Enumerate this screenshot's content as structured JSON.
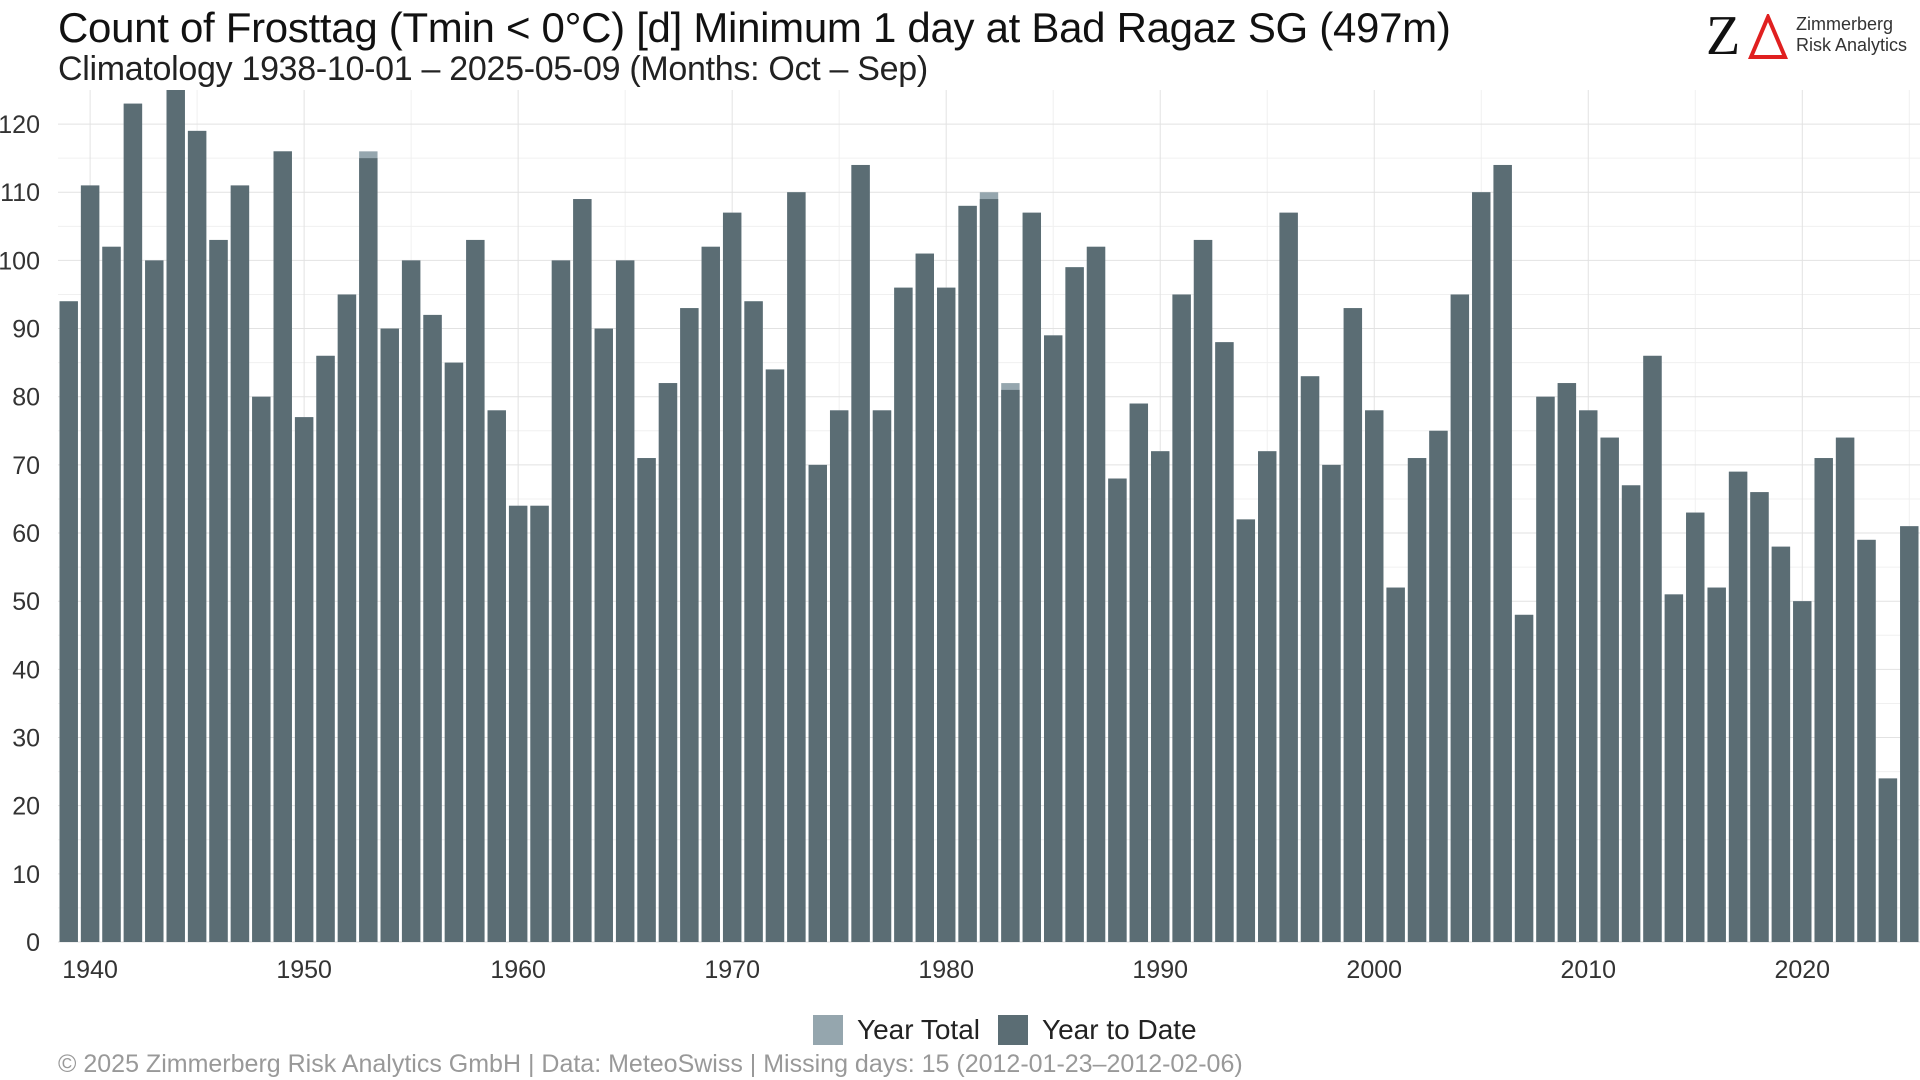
{
  "title": "Count of Frosttag (Tmin < 0°C) [d] Minimum 1 day at Bad Ragaz  SG (497m)",
  "subtitle": "Climatology 1938-10-01 – 2025-05-09 (Months: Oct – Sep)",
  "logo": {
    "mark": "Z",
    "line1": "Zimmerberg",
    "line2": "Risk Analytics"
  },
  "footer": "©  2025 Zimmerberg Risk Analytics GmbH | Data: MeteoSwiss | Missing days: 15 (2012-01-23–2012-02-06)",
  "colors": {
    "year_total": "#95a6ae",
    "year_to_date": "#5b6d74",
    "logo_triangle": "#e02020"
  },
  "chart_data": {
    "type": "bar",
    "xlim": [
      1938.5,
      2025.5
    ],
    "ylim": [
      0,
      125
    ],
    "grid": true,
    "legend_position": "bottom",
    "x_ticks": [
      1940,
      1950,
      1960,
      1970,
      1980,
      1990,
      2000,
      2010,
      2020
    ],
    "y_ticks": [
      0,
      10,
      20,
      30,
      40,
      50,
      60,
      70,
      80,
      90,
      100,
      110,
      120
    ],
    "x": [
      1939,
      1940,
      1941,
      1942,
      1943,
      1944,
      1945,
      1946,
      1947,
      1948,
      1949,
      1950,
      1951,
      1952,
      1953,
      1954,
      1955,
      1956,
      1957,
      1958,
      1959,
      1960,
      1961,
      1962,
      1963,
      1964,
      1965,
      1966,
      1967,
      1968,
      1969,
      1970,
      1971,
      1972,
      1973,
      1974,
      1975,
      1976,
      1977,
      1978,
      1979,
      1980,
      1981,
      1982,
      1983,
      1984,
      1985,
      1986,
      1987,
      1988,
      1989,
      1990,
      1991,
      1992,
      1993,
      1994,
      1995,
      1996,
      1997,
      1998,
      1999,
      2000,
      2001,
      2002,
      2003,
      2004,
      2005,
      2006,
      2007,
      2008,
      2009,
      2010,
      2011,
      2012,
      2013,
      2014,
      2015,
      2016,
      2017,
      2018,
      2019,
      2020,
      2021,
      2022,
      2023,
      2024,
      2025
    ],
    "series": [
      {
        "name": "Year Total",
        "values": [
          94,
          111,
          102,
          123,
          100,
          125,
          119,
          103,
          111,
          80,
          116,
          77,
          86,
          95,
          116,
          90,
          100,
          92,
          85,
          103,
          78,
          64,
          64,
          100,
          109,
          90,
          100,
          71,
          82,
          93,
          102,
          107,
          94,
          84,
          110,
          70,
          78,
          114,
          78,
          96,
          101,
          96,
          108,
          110,
          82,
          107,
          89,
          99,
          102,
          68,
          79,
          72,
          95,
          103,
          88,
          62,
          72,
          107,
          83,
          70,
          93,
          78,
          52,
          71,
          75,
          95,
          110,
          114,
          48,
          80,
          82,
          78,
          74,
          67,
          86,
          51,
          63,
          52,
          69,
          66,
          58,
          50,
          71,
          74,
          59,
          24,
          61
        ]
      },
      {
        "name": "Year to Date",
        "values": [
          94,
          111,
          102,
          123,
          100,
          125,
          119,
          103,
          111,
          80,
          116,
          77,
          86,
          95,
          115,
          90,
          100,
          92,
          85,
          103,
          78,
          64,
          64,
          100,
          109,
          90,
          100,
          71,
          82,
          93,
          102,
          107,
          94,
          84,
          110,
          70,
          78,
          114,
          78,
          96,
          101,
          96,
          108,
          109,
          81,
          107,
          89,
          99,
          102,
          68,
          79,
          72,
          95,
          103,
          88,
          62,
          72,
          107,
          83,
          70,
          93,
          78,
          52,
          71,
          75,
          95,
          110,
          114,
          48,
          80,
          82,
          78,
          74,
          67,
          86,
          51,
          63,
          52,
          69,
          66,
          58,
          50,
          71,
          74,
          59,
          24,
          61
        ]
      }
    ]
  }
}
